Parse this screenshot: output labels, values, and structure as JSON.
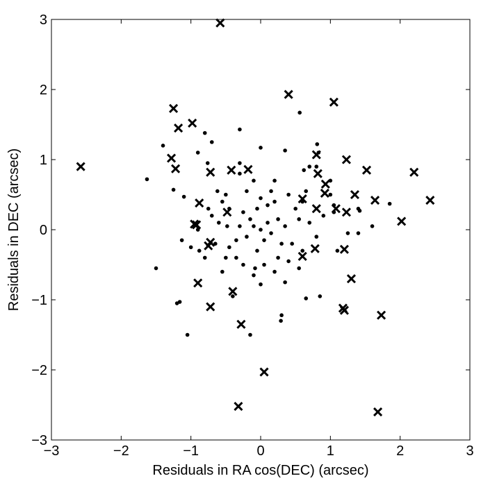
{
  "chart_data": {
    "type": "scatter",
    "title": "",
    "xlabel": "Residuals in RA cos(DEC) (arcsec)",
    "ylabel": "Residuals in DEC (arcsec)",
    "xlim": [
      -3,
      3
    ],
    "ylim": [
      -3,
      3
    ],
    "xticks": [
      -3,
      -2,
      -1,
      0,
      1,
      2,
      3
    ],
    "yticks": [
      -3,
      -2,
      -1,
      0,
      1,
      2,
      3
    ],
    "xtick_labels": [
      "−3",
      "−2",
      "−1",
      "0",
      "1",
      "2",
      "3"
    ],
    "ytick_labels": [
      "−3",
      "−2",
      "−1",
      "0",
      "1",
      "2",
      "3"
    ],
    "grid": false,
    "legend": "none",
    "series": [
      {
        "marker": "dot",
        "color": "#000000",
        "points": [
          [
            -1.63,
            0.72
          ],
          [
            -1.4,
            1.2
          ],
          [
            -1.25,
            0.57
          ],
          [
            -1.2,
            -1.05
          ],
          [
            -1.16,
            -1.03
          ],
          [
            -1.05,
            -1.5
          ],
          [
            -1.5,
            -0.55
          ],
          [
            -1.1,
            0.47
          ],
          [
            -1.13,
            -0.15
          ],
          [
            -1.0,
            -0.25
          ],
          [
            -0.9,
            1.1
          ],
          [
            -0.8,
            1.38
          ],
          [
            -0.76,
            0.95
          ],
          [
            -0.7,
            1.25
          ],
          [
            -0.3,
            1.43
          ],
          [
            -0.3,
            0.95
          ],
          [
            0.0,
            1.17
          ],
          [
            0.35,
            1.13
          ],
          [
            0.56,
            1.67
          ],
          [
            0.6,
            0.4
          ],
          [
            0.81,
            1.22
          ],
          [
            0.7,
            0.9
          ],
          [
            0.8,
            0.9
          ],
          [
            0.83,
            1.1
          ],
          [
            1.0,
            0.7
          ],
          [
            0.62,
            0.85
          ],
          [
            1.4,
            0.3
          ],
          [
            1.4,
            -0.05
          ],
          [
            1.6,
            0.05
          ],
          [
            1.85,
            0.37
          ],
          [
            1.42,
            0.27
          ],
          [
            1.05,
            0.25
          ],
          [
            1.05,
            0.35
          ],
          [
            1.1,
            -0.3
          ],
          [
            1.0,
            0.5
          ],
          [
            0.85,
            -0.95
          ],
          [
            0.65,
            -0.98
          ],
          [
            0.3,
            -1.22
          ],
          [
            0.29,
            -1.3
          ],
          [
            0.0,
            -0.78
          ],
          [
            -0.15,
            -1.5
          ],
          [
            -0.4,
            -0.95
          ],
          [
            -0.55,
            -0.6
          ],
          [
            -0.8,
            -0.4
          ],
          [
            -0.88,
            -0.3
          ],
          [
            -0.9,
            0.0
          ],
          [
            -0.7,
            0.2
          ],
          [
            -0.55,
            0.4
          ],
          [
            -0.5,
            0.5
          ],
          [
            -0.35,
            -0.4
          ],
          [
            -0.3,
            0.8
          ],
          [
            -0.1,
            0.7
          ],
          [
            0.2,
            0.7
          ],
          [
            0.4,
            0.5
          ],
          [
            0.5,
            0.3
          ],
          [
            0.45,
            -0.2
          ],
          [
            0.55,
            -0.55
          ],
          [
            0.35,
            -0.75
          ],
          [
            0.2,
            -0.6
          ],
          [
            0.05,
            -0.5
          ],
          [
            -0.08,
            -0.55
          ],
          [
            -0.25,
            -0.5
          ],
          [
            -0.45,
            -0.25
          ],
          [
            -0.48,
            0.05
          ],
          [
            -0.45,
            0.3
          ],
          [
            -0.25,
            0.25
          ],
          [
            -0.2,
            -0.1
          ],
          [
            0.0,
            0.0
          ],
          [
            0.1,
            0.1
          ],
          [
            -0.1,
            0.05
          ],
          [
            0.05,
            -0.15
          ],
          [
            0.15,
            -0.05
          ],
          [
            0.25,
            0.15
          ],
          [
            0.3,
            -0.2
          ],
          [
            -0.05,
            0.3
          ],
          [
            0.1,
            0.35
          ],
          [
            0.2,
            0.4
          ],
          [
            -0.15,
            0.15
          ],
          [
            -0.3,
            0.05
          ],
          [
            -0.05,
            -0.3
          ],
          [
            0.7,
            0.1
          ],
          [
            0.8,
            -0.1
          ],
          [
            0.9,
            0.2
          ],
          [
            0.6,
            -0.3
          ],
          [
            -0.6,
            0.1
          ],
          [
            -0.65,
            -0.2
          ],
          [
            -0.75,
            0.3
          ],
          [
            0.35,
            0.05
          ],
          [
            -0.35,
            -0.15
          ],
          [
            0.0,
            0.45
          ],
          [
            0.15,
            0.55
          ],
          [
            -0.2,
            0.55
          ],
          [
            0.55,
            0.15
          ],
          [
            -0.5,
            -0.4
          ],
          [
            0.25,
            -0.4
          ],
          [
            0.4,
            -0.45
          ],
          [
            -0.1,
            -0.65
          ],
          [
            0.65,
            0.55
          ],
          [
            -0.62,
            0.55
          ],
          [
            1.25,
            -0.05
          ]
        ]
      },
      {
        "marker": "x",
        "color": "#000000",
        "points": [
          [
            -0.58,
            2.95
          ],
          [
            0.4,
            1.93
          ],
          [
            1.05,
            1.82
          ],
          [
            -1.25,
            1.73
          ],
          [
            -0.98,
            1.52
          ],
          [
            -1.18,
            1.45
          ],
          [
            -2.58,
            0.9
          ],
          [
            -1.28,
            1.02
          ],
          [
            -1.22,
            0.87
          ],
          [
            -0.72,
            0.82
          ],
          [
            -0.42,
            0.85
          ],
          [
            -0.18,
            0.86
          ],
          [
            0.8,
            1.07
          ],
          [
            0.82,
            0.8
          ],
          [
            1.23,
            1.0
          ],
          [
            1.52,
            0.85
          ],
          [
            2.2,
            0.82
          ],
          [
            0.93,
            0.65
          ],
          [
            0.92,
            0.52
          ],
          [
            1.35,
            0.5
          ],
          [
            0.6,
            0.44
          ],
          [
            1.64,
            0.42
          ],
          [
            2.43,
            0.42
          ],
          [
            -0.88,
            0.38
          ],
          [
            -0.48,
            0.25
          ],
          [
            0.8,
            0.3
          ],
          [
            1.08,
            0.3
          ],
          [
            1.23,
            0.25
          ],
          [
            2.02,
            0.12
          ],
          [
            -0.95,
            0.08
          ],
          [
            -0.92,
            0.07
          ],
          [
            -0.72,
            -0.18
          ],
          [
            -0.75,
            -0.23
          ],
          [
            0.6,
            -0.38
          ],
          [
            0.78,
            -0.27
          ],
          [
            1.2,
            -0.28
          ],
          [
            1.3,
            -0.7
          ],
          [
            -0.9,
            -0.76
          ],
          [
            -0.4,
            -0.88
          ],
          [
            -0.72,
            -1.1
          ],
          [
            1.18,
            -1.12
          ],
          [
            1.2,
            -1.15
          ],
          [
            1.73,
            -1.22
          ],
          [
            -0.28,
            -1.35
          ],
          [
            0.05,
            -2.03
          ],
          [
            -0.32,
            -2.52
          ],
          [
            1.68,
            -2.6
          ]
        ]
      }
    ]
  }
}
